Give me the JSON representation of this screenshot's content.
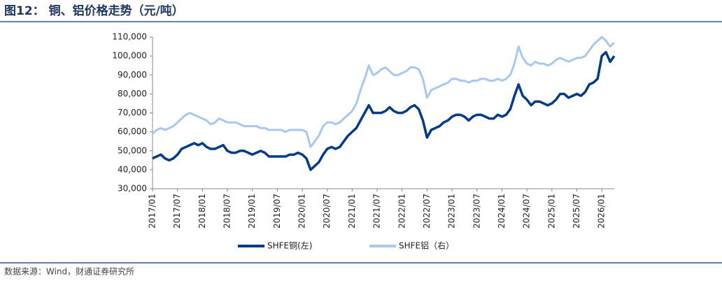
{
  "chart_data": {
    "type": "line",
    "title": "图12：  铜、铝价格走势（元/吨）",
    "source": "数据来源：Wind，财通证券研究所",
    "categories": [
      "2017/01",
      null,
      null,
      null,
      null,
      null,
      "2017/07",
      null,
      null,
      null,
      null,
      null,
      "2018/01",
      null,
      null,
      null,
      null,
      null,
      "2018/07",
      null,
      null,
      null,
      null,
      null,
      "2019/01",
      null,
      null,
      null,
      null,
      null,
      "2019/07",
      null,
      null,
      null,
      null,
      null,
      "2020/01",
      null,
      null,
      null,
      null,
      null,
      "2020/07",
      null,
      null,
      null,
      null,
      null,
      "2021/01",
      null,
      null,
      null,
      null,
      null,
      "2021/07",
      null,
      null,
      null,
      null,
      null,
      "2022/01",
      null,
      null,
      null,
      null,
      null,
      "2022/07",
      null,
      null,
      null,
      null,
      null,
      "2023/01",
      null,
      null,
      null,
      null,
      null,
      "2023/07",
      null,
      null,
      null,
      null,
      null,
      "2024/01",
      null,
      null,
      null,
      null,
      null,
      "2024/07",
      null,
      null,
      null,
      null,
      null,
      "2025/01",
      null,
      null,
      null,
      null,
      null,
      "2025/07",
      null,
      null,
      null,
      null,
      null,
      "2026/01",
      null,
      null,
      null
    ],
    "series": [
      {
        "name": "SHFE铜(左)",
        "color": "#003a8c",
        "values": [
          46000,
          47000,
          48000,
          46000,
          45000,
          46000,
          48000,
          51000,
          52000,
          53000,
          54000,
          53000,
          54000,
          52000,
          51000,
          51000,
          52000,
          53000,
          50000,
          49000,
          49000,
          50000,
          50000,
          49000,
          48000,
          49000,
          50000,
          49000,
          47000,
          47000,
          47000,
          47000,
          47000,
          48000,
          48000,
          49000,
          48000,
          46000,
          40000,
          42000,
          44000,
          48000,
          51000,
          52000,
          51000,
          52000,
          55000,
          58000,
          60000,
          62000,
          66000,
          70000,
          74000,
          70000,
          70000,
          70000,
          71000,
          73000,
          71000,
          70000,
          70000,
          71000,
          73000,
          74000,
          72000,
          66000,
          57000,
          61000,
          62000,
          63000,
          65000,
          66000,
          68000,
          69000,
          69000,
          68000,
          66000,
          68000,
          69000,
          69000,
          68000,
          67000,
          67000,
          69000,
          68000,
          69000,
          72000,
          79000,
          85000,
          79000,
          77000,
          74000,
          76000,
          76000,
          75000,
          74000,
          75000,
          77000,
          80000,
          80000,
          78000,
          79000,
          80000,
          79000,
          81000,
          85000,
          86000,
          88000,
          100000,
          102000,
          97000,
          100000
        ]
      },
      {
        "name": "SHFE铝（右）",
        "color": "#a9c8ef",
        "values": [
          59000,
          61000,
          62000,
          61000,
          62000,
          63000,
          65000,
          67000,
          69000,
          70000,
          69000,
          68000,
          67000,
          66000,
          64000,
          65000,
          67000,
          66000,
          65000,
          65000,
          65000,
          64000,
          63000,
          63000,
          63000,
          63000,
          62000,
          62000,
          61000,
          61000,
          61000,
          61000,
          60000,
          61000,
          61000,
          61000,
          61000,
          60000,
          52000,
          55000,
          58000,
          63000,
          65000,
          65000,
          64000,
          65000,
          67000,
          69000,
          71000,
          75000,
          82000,
          88000,
          95000,
          90000,
          91000,
          93000,
          94000,
          92000,
          90000,
          90000,
          91000,
          92000,
          94000,
          94000,
          93000,
          88000,
          78000,
          82000,
          83000,
          84000,
          85000,
          86000,
          88000,
          88000,
          87000,
          87000,
          86000,
          87000,
          87000,
          88000,
          88000,
          87000,
          87000,
          88000,
          87000,
          88000,
          90000,
          96000,
          105000,
          99000,
          96000,
          95000,
          97000,
          96000,
          96000,
          95000,
          96000,
          98000,
          99000,
          98000,
          97000,
          98000,
          99000,
          99000,
          100000,
          103000,
          106000,
          108000,
          110000,
          108000,
          105000,
          107000
        ]
      }
    ],
    "ylim": [
      30000,
      110000
    ],
    "yticks": [
      {
        "value": 30000,
        "label": "30,000"
      },
      {
        "value": 40000,
        "label": "40,000"
      },
      {
        "value": 50000,
        "label": "50,000"
      },
      {
        "value": 60000,
        "label": "60,000"
      },
      {
        "value": 70000,
        "label": "70,000"
      },
      {
        "value": 80000,
        "label": "80,000"
      },
      {
        "value": 90000,
        "label": "90,000"
      },
      {
        "value": 100000,
        "label": "100,000"
      },
      {
        "value": 110000,
        "label": "110,000"
      }
    ],
    "grid": false
  }
}
